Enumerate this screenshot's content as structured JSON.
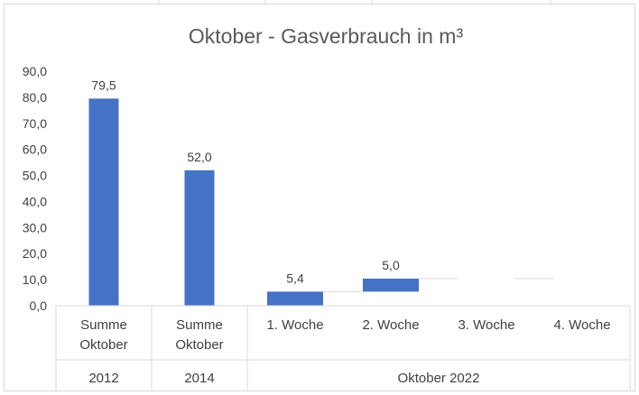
{
  "chart_data": {
    "type": "waterfall",
    "title": "Oktober - Gasverbrauch in m³",
    "xlabel": "",
    "ylabel": "",
    "ylim": [
      0,
      90
    ],
    "y_ticks": [
      "0,0",
      "10,0",
      "20,0",
      "30,0",
      "40,0",
      "50,0",
      "60,0",
      "70,0",
      "80,0",
      "90,0"
    ],
    "grid": false,
    "legend": "none",
    "categories": [
      "Summe Oktober 2012",
      "Summe Oktober 2014",
      "1. Woche Oktober 2022",
      "2. Woche Oktober 2022",
      "3. Woche Oktober 2022",
      "4. Woche Oktober 2022"
    ],
    "category_labels": [
      {
        "line1": "Summe",
        "line2": "Oktober"
      },
      {
        "line1": "Summe",
        "line2": "Oktober"
      },
      {
        "line1": "1. Woche",
        "line2": ""
      },
      {
        "line1": "2. Woche",
        "line2": ""
      },
      {
        "line1": "3. Woche",
        "line2": ""
      },
      {
        "line1": "4. Woche",
        "line2": ""
      }
    ],
    "groups": [
      {
        "label": "2012",
        "span": 1
      },
      {
        "label": "2014",
        "span": 1
      },
      {
        "label": "Oktober 2022",
        "span": 4
      }
    ],
    "bars": [
      {
        "value": 79.5,
        "base": 0,
        "label": "79,5"
      },
      {
        "value": 52.0,
        "base": 0,
        "label": "52,0"
      },
      {
        "value": 5.4,
        "base": 0,
        "label": "5,4"
      },
      {
        "value": 5.0,
        "base": 5.4,
        "label": "5,0"
      },
      {
        "value": 0,
        "base": 10.4,
        "label": ""
      },
      {
        "value": 0,
        "base": 10.4,
        "label": ""
      }
    ],
    "bar_color": "#4472c4"
  }
}
